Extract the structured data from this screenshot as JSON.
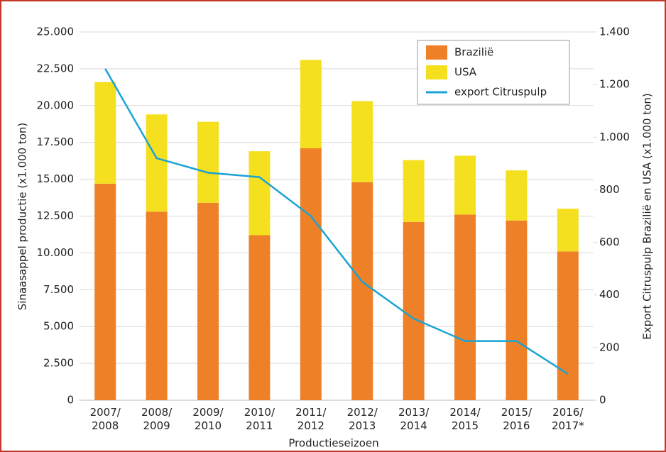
{
  "chart_data": {
    "type": "bar",
    "categories": [
      "2007/\n2008",
      "2008/\n2009",
      "2009/\n2010",
      "2010/\n2011",
      "2011/\n2012",
      "2012/\n2013",
      "2013/\n2014",
      "2014/\n2015",
      "2015/\n2016",
      "2016/\n2017*"
    ],
    "stacked": true,
    "series": [
      {
        "name": "Brazilië",
        "type": "bar",
        "color": "#ee8027",
        "values": [
          14700,
          12800,
          13400,
          11200,
          17100,
          14800,
          12100,
          12600,
          12200,
          10100
        ]
      },
      {
        "name": "USA",
        "type": "bar",
        "color": "#f5e020",
        "values": [
          6900,
          6600,
          5500,
          5700,
          6000,
          5500,
          4200,
          4000,
          3400,
          2900
        ]
      },
      {
        "name": "export Citruspulp",
        "type": "line",
        "axis": "y2",
        "color": "#1aa3d4",
        "values": [
          1260,
          920,
          865,
          848,
          700,
          450,
          310,
          225,
          225,
          100
        ]
      }
    ],
    "xlabel": "Productieseizoen",
    "ylabel": "Sinaasappel productie (x1.000 ton)",
    "y2label": "Export Citruspulp Brazilië en USA (x1.000 ton)",
    "ylim": [
      0,
      25000
    ],
    "yticks": [
      0,
      {
        "value": 2500,
        "label": "2.500"
      },
      {
        "value": 5000,
        "label": "5.000"
      },
      {
        "value": 7500,
        "label": "7.500"
      },
      {
        "value": 10000,
        "label": "10.000"
      },
      {
        "value": 12500,
        "label": "12.500"
      },
      {
        "value": 15000,
        "label": "15.000"
      },
      {
        "value": 17500,
        "label": "17.500"
      },
      {
        "value": 20000,
        "label": "20.000"
      },
      {
        "value": 22500,
        "label": "22.500"
      },
      {
        "value": 25000,
        "label": "25.000"
      }
    ],
    "y2lim": [
      0,
      1400
    ],
    "y2ticks": [
      0,
      200,
      400,
      600,
      800,
      {
        "value": 1000,
        "label": "1.000"
      },
      {
        "value": 1200,
        "label": "1.200"
      },
      {
        "value": 1400,
        "label": "1.400"
      }
    ],
    "grid": true,
    "legend": "upper right"
  }
}
